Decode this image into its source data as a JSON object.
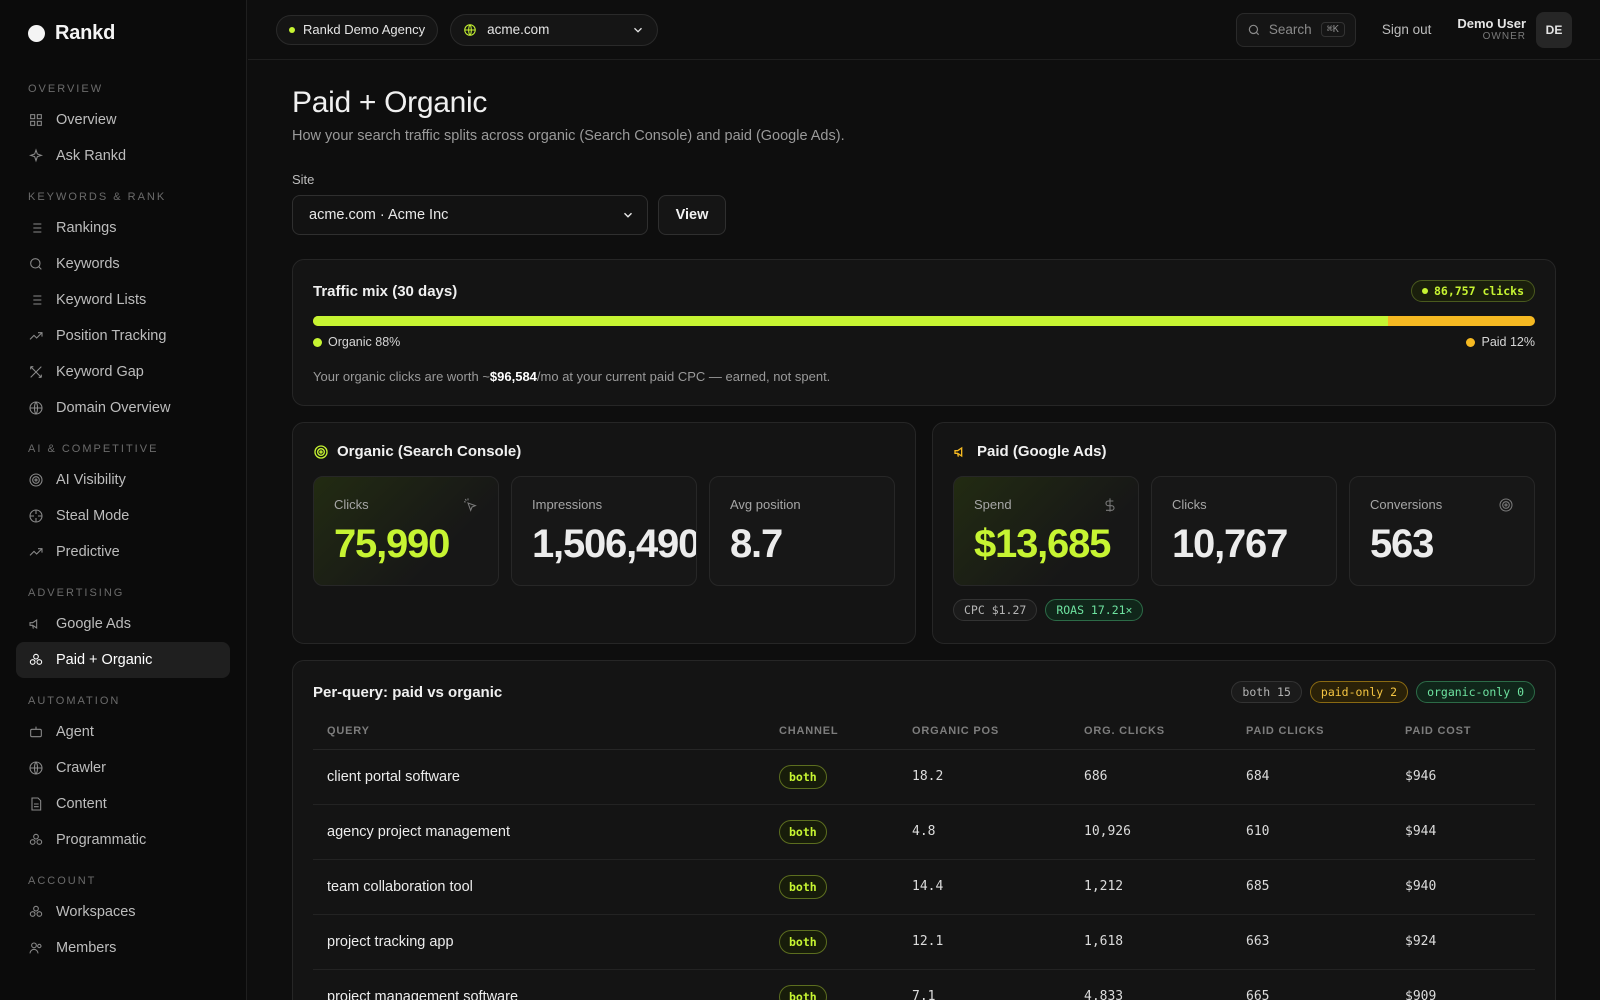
{
  "brand": {
    "name": "Rankd"
  },
  "sidebar": {
    "sections": [
      {
        "title": "OVERVIEW",
        "items": [
          {
            "label": "Overview",
            "icon": "grid-icon"
          },
          {
            "label": "Ask Rankd",
            "icon": "sparkle-icon"
          }
        ]
      },
      {
        "title": "KEYWORDS & RANK",
        "items": [
          {
            "label": "Rankings",
            "icon": "list-icon"
          },
          {
            "label": "Keywords",
            "icon": "search-icon"
          },
          {
            "label": "Keyword Lists",
            "icon": "list-icon"
          },
          {
            "label": "Position Tracking",
            "icon": "trending-up-icon"
          },
          {
            "label": "Keyword Gap",
            "icon": "cross-swords-icon"
          },
          {
            "label": "Domain Overview",
            "icon": "globe-icon"
          }
        ]
      },
      {
        "title": "AI & COMPETITIVE",
        "items": [
          {
            "label": "AI Visibility",
            "icon": "target-icon"
          },
          {
            "label": "Steal Mode",
            "icon": "crosshair-icon"
          },
          {
            "label": "Predictive",
            "icon": "trending-up-icon"
          }
        ]
      },
      {
        "title": "ADVERTISING",
        "items": [
          {
            "label": "Google Ads",
            "icon": "megaphone-icon"
          },
          {
            "label": "Paid + Organic",
            "icon": "circles-icon",
            "active": true
          }
        ]
      },
      {
        "title": "AUTOMATION",
        "items": [
          {
            "label": "Agent",
            "icon": "bot-icon"
          },
          {
            "label": "Crawler",
            "icon": "globe-icon"
          },
          {
            "label": "Content",
            "icon": "document-icon"
          },
          {
            "label": "Programmatic",
            "icon": "circles-icon"
          }
        ]
      },
      {
        "title": "ACCOUNT",
        "items": [
          {
            "label": "Workspaces",
            "icon": "circles-icon"
          },
          {
            "label": "Members",
            "icon": "users-icon"
          }
        ]
      }
    ]
  },
  "topbar": {
    "agency": "Rankd Demo Agency",
    "site": "acme.com",
    "search_label": "Search",
    "search_shortcut": "⌘K",
    "signout": "Sign out",
    "user_name": "Demo User",
    "user_role": "OWNER",
    "avatar_initials": "DE"
  },
  "page": {
    "title": "Paid + Organic",
    "subtitle": "How your search traffic splits across organic (Search Console) and paid (Google Ads).",
    "site_label": "Site",
    "site_value": "acme.com · Acme Inc",
    "view_button": "View"
  },
  "traffic_mix": {
    "title": "Traffic mix (30 days)",
    "total_clicks": "86,757 clicks",
    "organic_label": "Organic 88%",
    "paid_label": "Paid 12%",
    "organic_share": 0.88,
    "note_prefix": "Your organic clicks are worth ~",
    "note_value": "$96,584",
    "note_suffix": "/mo at your current paid CPC — earned, not spent.",
    "colors": {
      "organic": "#c6f432",
      "paid": "#f5b922"
    }
  },
  "organic": {
    "title": "Organic (Search Console)",
    "stats": [
      {
        "label": "Clicks",
        "value": "75,990"
      },
      {
        "label": "Impressions",
        "value": "1,506,490"
      },
      {
        "label": "Avg position",
        "value": "8.7"
      }
    ]
  },
  "paid": {
    "title": "Paid (Google Ads)",
    "stats": [
      {
        "label": "Spend",
        "value": "$13,685"
      },
      {
        "label": "Clicks",
        "value": "10,767"
      },
      {
        "label": "Conversions",
        "value": "563"
      }
    ],
    "cpc": "CPC $1.27",
    "roas": "ROAS 17.21×"
  },
  "per_query": {
    "title": "Per-query: paid vs organic",
    "chips": {
      "both": "both 15",
      "paid_only": "paid-only 2",
      "organic_only": "organic-only 0"
    },
    "columns": [
      "QUERY",
      "CHANNEL",
      "ORGANIC POS",
      "ORG. CLICKS",
      "PAID CLICKS",
      "PAID COST"
    ],
    "rows": [
      {
        "query": "client portal software",
        "channel": "both",
        "pos": "18.2",
        "org": "686",
        "paid": "684",
        "cost": "$946"
      },
      {
        "query": "agency project management",
        "channel": "both",
        "pos": "4.8",
        "org": "10,926",
        "paid": "610",
        "cost": "$944"
      },
      {
        "query": "team collaboration tool",
        "channel": "both",
        "pos": "14.4",
        "org": "1,212",
        "paid": "685",
        "cost": "$940"
      },
      {
        "query": "project tracking app",
        "channel": "both",
        "pos": "12.1",
        "org": "1,618",
        "paid": "663",
        "cost": "$924"
      },
      {
        "query": "project management software",
        "channel": "both",
        "pos": "7.1",
        "org": "4,833",
        "paid": "665",
        "cost": "$909"
      }
    ]
  }
}
